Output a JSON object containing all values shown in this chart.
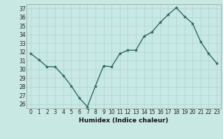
{
  "x": [
    0,
    1,
    2,
    3,
    4,
    5,
    6,
    7,
    8,
    9,
    10,
    11,
    12,
    13,
    14,
    15,
    16,
    17,
    18,
    19,
    20,
    21,
    22,
    23
  ],
  "y": [
    31.8,
    31.1,
    30.3,
    30.3,
    29.3,
    28.1,
    26.7,
    25.7,
    28.1,
    30.4,
    30.3,
    31.8,
    32.2,
    32.2,
    33.8,
    34.3,
    35.4,
    36.3,
    37.1,
    36.1,
    35.3,
    33.2,
    31.8,
    30.7
  ],
  "xlabel": "Humidex (Indice chaleur)",
  "ylim": [
    25.5,
    37.5
  ],
  "xlim": [
    -0.5,
    23.5
  ],
  "yticks": [
    26,
    27,
    28,
    29,
    30,
    31,
    32,
    33,
    34,
    35,
    36,
    37
  ],
  "xticks": [
    0,
    1,
    2,
    3,
    4,
    5,
    6,
    7,
    8,
    9,
    10,
    11,
    12,
    13,
    14,
    15,
    16,
    17,
    18,
    19,
    20,
    21,
    22,
    23
  ],
  "line_color": "#2e6b5c",
  "bg_color": "#c8e8e4",
  "grid_color": "#afd4d0",
  "marker": "*",
  "marker_size": 3.0,
  "linewidth": 1.0,
  "tick_fontsize": 5.5,
  "xlabel_fontsize": 6.5
}
